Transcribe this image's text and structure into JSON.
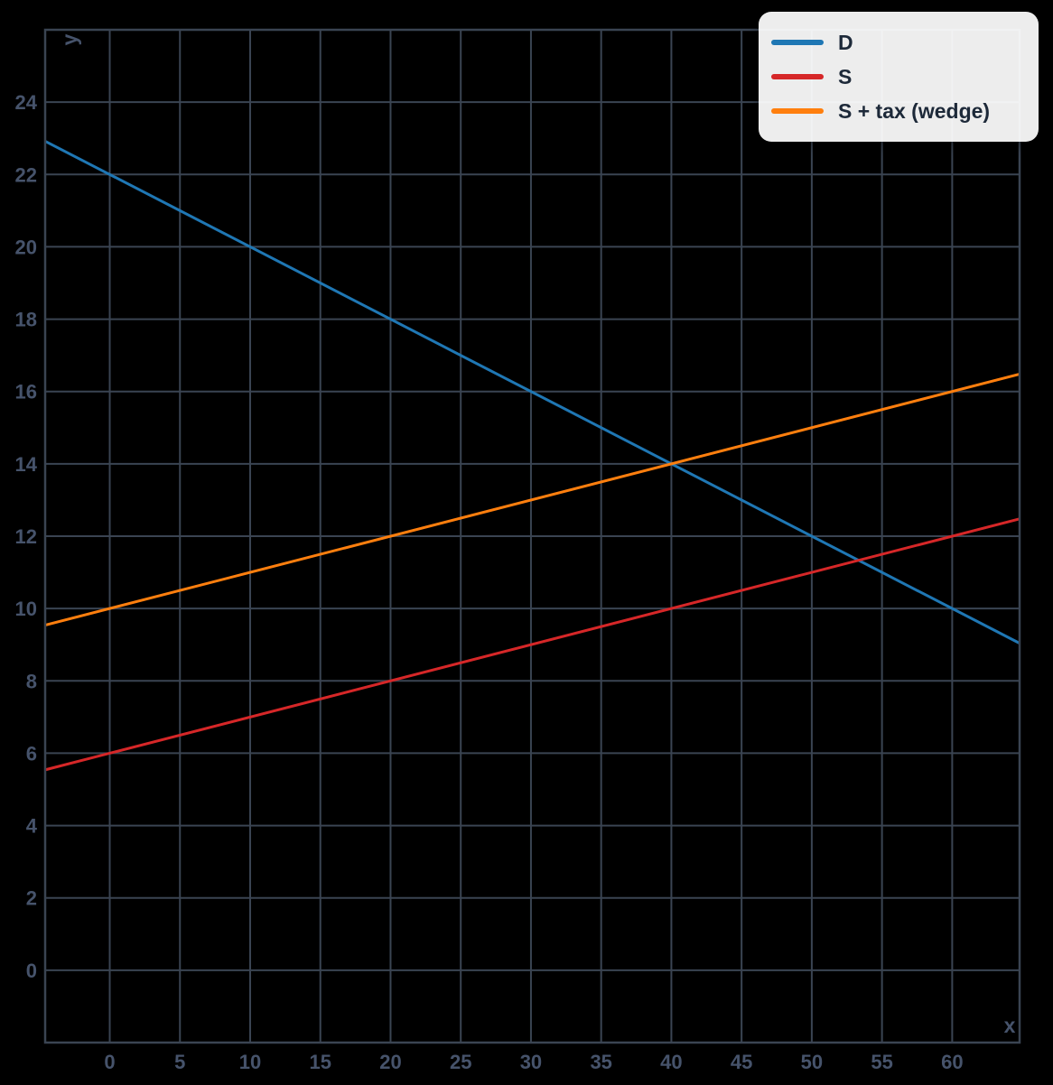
{
  "page": {
    "background": "#000000"
  },
  "chart_data": {
    "type": "line",
    "title": "",
    "xlabel": "x",
    "ylabel": "y",
    "xlim": [
      -4.6,
      64.8
    ],
    "ylim": [
      -2,
      26
    ],
    "x_ticks": [
      0,
      5,
      10,
      15,
      20,
      25,
      30,
      35,
      40,
      45,
      50,
      55,
      60
    ],
    "y_ticks": [
      0,
      2,
      4,
      6,
      8,
      10,
      12,
      14,
      16,
      18,
      20,
      22,
      24
    ],
    "grid": true,
    "grid_color": "#3a4452",
    "axis_color": "#3a4452",
    "tick_label_color": "#46536b",
    "legend_position": "top-right",
    "series": [
      {
        "name": "D",
        "color": "#1f77b4",
        "slope": -0.2,
        "intercept": 22,
        "points": [
          [
            -4.6,
            22.92
          ],
          [
            0,
            22
          ],
          [
            10,
            20
          ],
          [
            20,
            18
          ],
          [
            30,
            16
          ],
          [
            40,
            14
          ],
          [
            50,
            12
          ],
          [
            60,
            10
          ],
          [
            64.8,
            9.04
          ]
        ]
      },
      {
        "name": "S",
        "color": "#d62728",
        "slope": 0.1,
        "intercept": 6,
        "points": [
          [
            -4.6,
            5.54
          ],
          [
            0,
            6
          ],
          [
            10,
            7
          ],
          [
            20,
            8
          ],
          [
            30,
            9
          ],
          [
            40,
            10
          ],
          [
            50,
            11
          ],
          [
            60,
            12
          ],
          [
            64.8,
            12.48
          ]
        ]
      },
      {
        "name": "S + tax (wedge)",
        "color": "#ff7f0e",
        "slope": 0.1,
        "intercept": 10,
        "points": [
          [
            -4.6,
            9.54
          ],
          [
            0,
            10
          ],
          [
            10,
            11
          ],
          [
            20,
            12
          ],
          [
            30,
            13
          ],
          [
            40,
            14
          ],
          [
            50,
            15
          ],
          [
            60,
            16
          ],
          [
            64.8,
            16.48
          ]
        ]
      }
    ],
    "key_points": {
      "D_meets_S_plus_tax": [
        40,
        14
      ],
      "D_meets_S": [
        53.3,
        11.3
      ]
    }
  }
}
